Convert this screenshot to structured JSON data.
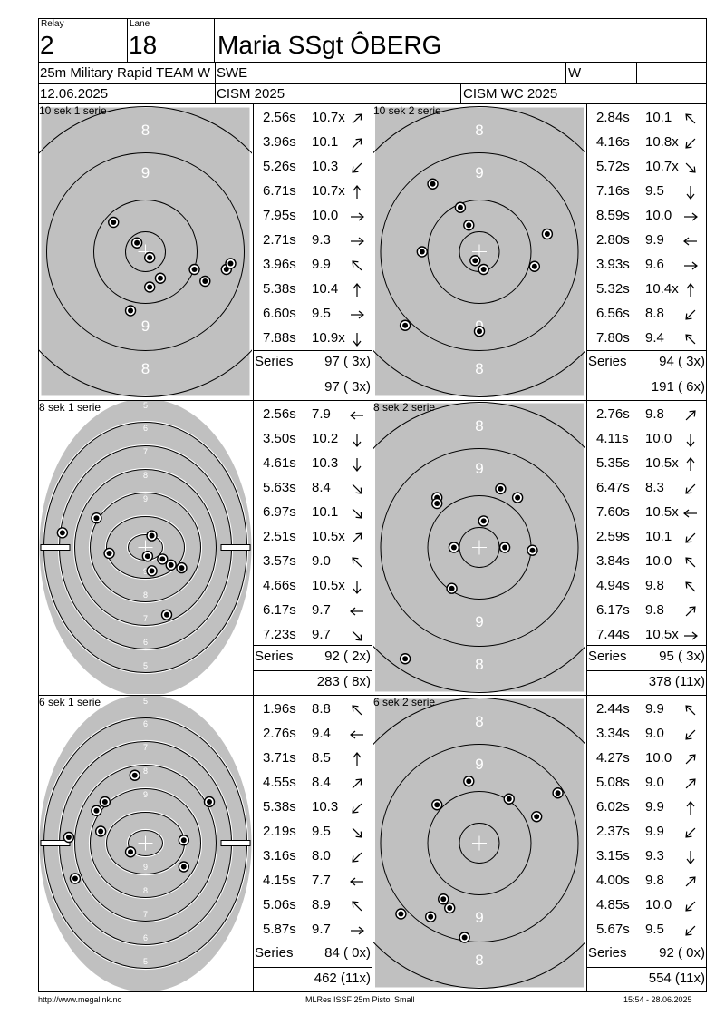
{
  "header": {
    "relay_label": "Relay",
    "relay": "2",
    "lane_label": "Lane",
    "lane": "18",
    "shooter": "Maria SSgt ÔBERG",
    "event": "25m Military Rapid TEAM W",
    "nation": "SWE",
    "gender": "W",
    "date": "12.06.2025",
    "competition": "CISM 2025",
    "championship": "CISM WC 2025"
  },
  "panels": [
    {
      "label": "10 sek 1 serie",
      "target": "precision",
      "shots": [
        {
          "time": "2.56s",
          "score": "10.7x",
          "dir": "ne"
        },
        {
          "time": "3.96s",
          "score": "10.1",
          "dir": "ne"
        },
        {
          "time": "5.26s",
          "score": "10.3",
          "dir": "sw"
        },
        {
          "time": "6.71s",
          "score": "10.7x",
          "dir": "n"
        },
        {
          "time": "7.95s",
          "score": "10.0",
          "dir": "e"
        },
        {
          "time": "2.71s",
          "score": "9.3",
          "dir": "e"
        },
        {
          "time": "3.96s",
          "score": "9.9",
          "dir": "nw"
        },
        {
          "time": "5.38s",
          "score": "10.4",
          "dir": "n"
        },
        {
          "time": "6.60s",
          "score": "9.5",
          "dir": "e"
        },
        {
          "time": "7.88s",
          "score": "10.9x",
          "dir": "s"
        }
      ],
      "series_label": "Series",
      "series_total": "97 ( 3x)",
      "running_total": "97 ( 3x)",
      "holes": [
        [
          0.35,
          0.4
        ],
        [
          0.46,
          0.47
        ],
        [
          0.52,
          0.52
        ],
        [
          0.57,
          0.59
        ],
        [
          0.52,
          0.62
        ],
        [
          0.43,
          0.7
        ],
        [
          0.73,
          0.56
        ],
        [
          0.78,
          0.6
        ],
        [
          0.88,
          0.56
        ],
        [
          0.9,
          0.54
        ]
      ]
    },
    {
      "label": "10 sek 2 serie",
      "target": "precision",
      "shots": [
        {
          "time": "2.84s",
          "score": "10.1",
          "dir": "nw"
        },
        {
          "time": "4.16s",
          "score": "10.8x",
          "dir": "sw"
        },
        {
          "time": "5.72s",
          "score": "10.7x",
          "dir": "se"
        },
        {
          "time": "7.16s",
          "score": "9.5",
          "dir": "s"
        },
        {
          "time": "8.59s",
          "score": "10.0",
          "dir": "e"
        },
        {
          "time": "2.80s",
          "score": "9.9",
          "dir": "w"
        },
        {
          "time": "3.93s",
          "score": "9.6",
          "dir": "e"
        },
        {
          "time": "5.32s",
          "score": "10.4x",
          "dir": "n"
        },
        {
          "time": "6.56s",
          "score": "8.8",
          "dir": "sw"
        },
        {
          "time": "7.80s",
          "score": "9.4",
          "dir": "nw"
        }
      ],
      "series_label": "Series",
      "series_total": "94 ( 3x)",
      "running_total": "191 ( 6x)",
      "holes": [
        [
          0.28,
          0.27
        ],
        [
          0.41,
          0.35
        ],
        [
          0.45,
          0.41
        ],
        [
          0.23,
          0.5
        ],
        [
          0.48,
          0.53
        ],
        [
          0.52,
          0.56
        ],
        [
          0.76,
          0.55
        ],
        [
          0.82,
          0.44
        ],
        [
          0.15,
          0.75
        ],
        [
          0.5,
          0.77
        ]
      ]
    },
    {
      "label": "8 sek 1 serie",
      "target": "rapid",
      "shots": [
        {
          "time": "2.56s",
          "score": "7.9",
          "dir": "w"
        },
        {
          "time": "3.50s",
          "score": "10.2",
          "dir": "s"
        },
        {
          "time": "4.61s",
          "score": "10.3",
          "dir": "s"
        },
        {
          "time": "5.63s",
          "score": "8.4",
          "dir": "se"
        },
        {
          "time": "6.97s",
          "score": "10.1",
          "dir": "se"
        },
        {
          "time": "2.51s",
          "score": "10.5x",
          "dir": "ne"
        },
        {
          "time": "3.57s",
          "score": "9.0",
          "dir": "nw"
        },
        {
          "time": "4.66s",
          "score": "10.5x",
          "dir": "s"
        },
        {
          "time": "6.17s",
          "score": "9.7",
          "dir": "w"
        },
        {
          "time": "7.23s",
          "score": "9.7",
          "dir": "se"
        }
      ],
      "series_label": "Series",
      "series_total": "92 ( 2x)",
      "running_total": "283 ( 8x)",
      "rapid_scores": [
        "5",
        "6",
        "7",
        "8",
        "9",
        "10",
        "9",
        "8",
        "7",
        "6",
        "5"
      ],
      "holes": [
        [
          0.11,
          0.45
        ],
        [
          0.27,
          0.4
        ],
        [
          0.53,
          0.46
        ],
        [
          0.33,
          0.52
        ],
        [
          0.51,
          0.53
        ],
        [
          0.58,
          0.54
        ],
        [
          0.62,
          0.56
        ],
        [
          0.67,
          0.57
        ],
        [
          0.53,
          0.58
        ],
        [
          0.6,
          0.73
        ]
      ]
    },
    {
      "label": "8 sek 2 serie",
      "target": "precision",
      "shots": [
        {
          "time": "2.76s",
          "score": "9.8",
          "dir": "ne"
        },
        {
          "time": "4.11s",
          "score": "10.0",
          "dir": "s"
        },
        {
          "time": "5.35s",
          "score": "10.5x",
          "dir": "n"
        },
        {
          "time": "6.47s",
          "score": "8.3",
          "dir": "sw"
        },
        {
          "time": "7.60s",
          "score": "10.5x",
          "dir": "w"
        },
        {
          "time": "2.59s",
          "score": "10.1",
          "dir": "sw"
        },
        {
          "time": "3.84s",
          "score": "10.0",
          "dir": "nw"
        },
        {
          "time": "4.94s",
          "score": "9.8",
          "dir": "nw"
        },
        {
          "time": "6.17s",
          "score": "9.8",
          "dir": "ne"
        },
        {
          "time": "7.44s",
          "score": "10.5x",
          "dir": "e"
        }
      ],
      "series_label": "Series",
      "series_total": "95 ( 3x)",
      "running_total": "378 (11x)",
      "holes": [
        [
          0.3,
          0.33
        ],
        [
          0.3,
          0.35
        ],
        [
          0.6,
          0.3
        ],
        [
          0.68,
          0.33
        ],
        [
          0.52,
          0.41
        ],
        [
          0.38,
          0.5
        ],
        [
          0.62,
          0.5
        ],
        [
          0.75,
          0.51
        ],
        [
          0.37,
          0.64
        ],
        [
          0.15,
          0.88
        ]
      ]
    },
    {
      "label": "6 sek 1 serie",
      "target": "rapid",
      "shots": [
        {
          "time": "1.96s",
          "score": "8.8",
          "dir": "nw"
        },
        {
          "time": "2.76s",
          "score": "9.4",
          "dir": "w"
        },
        {
          "time": "3.71s",
          "score": "8.5",
          "dir": "n"
        },
        {
          "time": "4.55s",
          "score": "8.4",
          "dir": "ne"
        },
        {
          "time": "5.38s",
          "score": "10.3",
          "dir": "sw"
        },
        {
          "time": "2.19s",
          "score": "9.5",
          "dir": "se"
        },
        {
          "time": "3.16s",
          "score": "8.0",
          "dir": "sw"
        },
        {
          "time": "4.15s",
          "score": "7.7",
          "dir": "w"
        },
        {
          "time": "5.06s",
          "score": "8.9",
          "dir": "nw"
        },
        {
          "time": "5.87s",
          "score": "9.7",
          "dir": "e"
        }
      ],
      "series_label": "Series",
      "series_total": "84 ( 0x)",
      "running_total": "462 (11x)",
      "rapid_scores": [
        "5",
        "6",
        "7",
        "8",
        "9",
        "10",
        "9",
        "8",
        "7",
        "6",
        "5"
      ],
      "holes": [
        [
          0.45,
          0.27
        ],
        [
          0.31,
          0.36
        ],
        [
          0.27,
          0.39
        ],
        [
          0.8,
          0.36
        ],
        [
          0.29,
          0.46
        ],
        [
          0.14,
          0.48
        ],
        [
          0.68,
          0.49
        ],
        [
          0.43,
          0.53
        ],
        [
          0.68,
          0.58
        ],
        [
          0.17,
          0.62
        ]
      ]
    },
    {
      "label": "6 sek 2 serie",
      "target": "precision",
      "shots": [
        {
          "time": "2.44s",
          "score": "9.9",
          "dir": "nw"
        },
        {
          "time": "3.34s",
          "score": "9.0",
          "dir": "sw"
        },
        {
          "time": "4.27s",
          "score": "10.0",
          "dir": "ne"
        },
        {
          "time": "5.08s",
          "score": "9.0",
          "dir": "ne"
        },
        {
          "time": "6.02s",
          "score": "9.9",
          "dir": "n"
        },
        {
          "time": "2.37s",
          "score": "9.9",
          "dir": "sw"
        },
        {
          "time": "3.15s",
          "score": "9.3",
          "dir": "s"
        },
        {
          "time": "4.00s",
          "score": "9.8",
          "dir": "ne"
        },
        {
          "time": "4.85s",
          "score": "10.0",
          "dir": "sw"
        },
        {
          "time": "5.67s",
          "score": "9.5",
          "dir": "sw"
        }
      ],
      "series_label": "Series",
      "series_total": "92 ( 0x)",
      "running_total": "554 (11x)",
      "holes": [
        [
          0.45,
          0.29
        ],
        [
          0.3,
          0.37
        ],
        [
          0.64,
          0.35
        ],
        [
          0.77,
          0.41
        ],
        [
          0.87,
          0.33
        ],
        [
          0.33,
          0.69
        ],
        [
          0.36,
          0.72
        ],
        [
          0.27,
          0.75
        ],
        [
          0.13,
          0.74
        ],
        [
          0.43,
          0.82
        ]
      ]
    }
  ],
  "precision_scores": [
    "8",
    "9",
    "9",
    "8"
  ],
  "footer": {
    "left": "http://www.megalink.no",
    "center": "MLRes ISSF 25m Pistol Small",
    "right": "15:54 - 28.06.2025"
  }
}
